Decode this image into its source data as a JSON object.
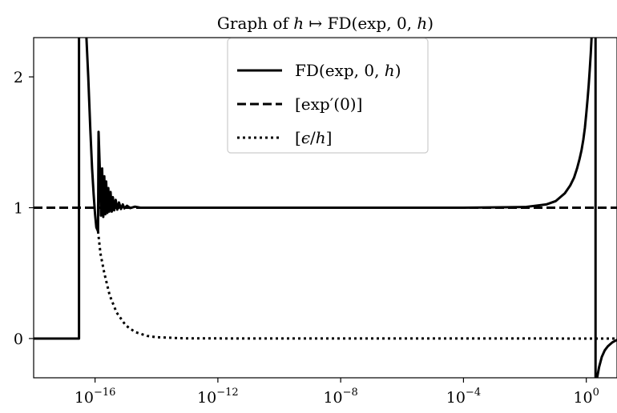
{
  "chart_data": {
    "type": "line",
    "title": "Graph of h ↦ FD(exp, 0, h)",
    "xscale": "log",
    "xlim": [
      1e-18,
      10
    ],
    "ylim": [
      -0.3,
      2.3
    ],
    "xticks": [
      {
        "value": 1e-16,
        "base": "10",
        "exp": "−16"
      },
      {
        "value": 1e-12,
        "base": "10",
        "exp": "−12"
      },
      {
        "value": 1e-08,
        "base": "10",
        "exp": "−8"
      },
      {
        "value": 0.0001,
        "base": "10",
        "exp": "−4"
      },
      {
        "value": 1,
        "base": "10",
        "exp": "0"
      }
    ],
    "yticks": [
      {
        "value": 0,
        "label": "0"
      },
      {
        "value": 1,
        "label": "1"
      },
      {
        "value": 2,
        "label": "2"
      }
    ],
    "grid": false,
    "legend_position": "upper center",
    "series": [
      {
        "name": "FD(exp, 0, h)",
        "style": "solid",
        "points": [
          [
            1e-18,
            0
          ],
          [
            3e-17,
            0
          ],
          [
            3.001e-17,
            2.4
          ],
          [
            5e-17,
            2.4
          ],
          [
            6e-17,
            2.0
          ],
          [
            7e-17,
            1.6
          ],
          [
            8e-17,
            1.3
          ],
          [
            9e-17,
            1.1
          ],
          [
            1e-16,
            0.95
          ],
          [
            1.1e-16,
            0.85
          ],
          [
            1.25e-16,
            0.82
          ],
          [
            1.3e-16,
            1.58
          ],
          [
            1.45e-16,
            1.25
          ],
          [
            1.55e-16,
            0.94
          ],
          [
            1.7e-16,
            1.3
          ],
          [
            1.85e-16,
            0.93
          ],
          [
            2e-16,
            1.24
          ],
          [
            2.15e-16,
            0.95
          ],
          [
            2.3e-16,
            1.2
          ],
          [
            2.5e-16,
            0.96
          ],
          [
            2.7e-16,
            1.15
          ],
          [
            2.9e-16,
            0.97
          ],
          [
            3.2e-16,
            1.12
          ],
          [
            3.5e-16,
            0.97
          ],
          [
            3.8e-16,
            1.08
          ],
          [
            4.2e-16,
            0.98
          ],
          [
            4.7e-16,
            1.06
          ],
          [
            5.3e-16,
            0.985
          ],
          [
            6e-16,
            1.04
          ],
          [
            7e-16,
            0.99
          ],
          [
            8e-16,
            1.025
          ],
          [
            9e-16,
            0.995
          ],
          [
            1.1e-15,
            1.015
          ],
          [
            1.4e-15,
            0.997
          ],
          [
            2e-15,
            1.008
          ],
          [
            3e-15,
            1.0
          ],
          [
            1e-14,
            1.0
          ],
          [
            1e-08,
            1.0
          ],
          [
            0.0001,
            1.0
          ],
          [
            0.01,
            1.005
          ],
          [
            0.05,
            1.025
          ],
          [
            0.1,
            1.05
          ],
          [
            0.2,
            1.11
          ],
          [
            0.3,
            1.17
          ],
          [
            0.4,
            1.23
          ],
          [
            0.5,
            1.3
          ],
          [
            0.6,
            1.37
          ],
          [
            0.7,
            1.44
          ],
          [
            0.8,
            1.52
          ],
          [
            0.9,
            1.61
          ],
          [
            1.0,
            1.72
          ],
          [
            1.1,
            1.83
          ],
          [
            1.2,
            1.94
          ],
          [
            1.3,
            2.06
          ],
          [
            1.4,
            2.18
          ],
          [
            1.5,
            2.32
          ],
          [
            1.6,
            2.45
          ],
          [
            2.0,
            2.45
          ],
          [
            2.0001,
            -0.35
          ],
          [
            2.1,
            -0.35
          ],
          [
            2.25,
            -0.3
          ],
          [
            2.6,
            -0.22
          ],
          [
            3.2,
            -0.14
          ],
          [
            4.0,
            -0.09
          ],
          [
            5.0,
            -0.06
          ],
          [
            7.0,
            -0.03
          ],
          [
            10.0,
            -0.01
          ]
        ]
      },
      {
        "name": "[exp′(0)]",
        "style": "dashed",
        "points": [
          [
            1e-18,
            1.0
          ],
          [
            10,
            1.0
          ]
        ]
      },
      {
        "name": "[ϵ/h]",
        "style": "dotted",
        "points": [
          [
            1.25e-16,
            0.82
          ],
          [
            1.5e-16,
            0.65
          ],
          [
            2e-16,
            0.5
          ],
          [
            3e-16,
            0.33
          ],
          [
            5e-16,
            0.2
          ],
          [
            1e-15,
            0.1
          ],
          [
            2e-15,
            0.05
          ],
          [
            5e-15,
            0.02
          ],
          [
            1e-14,
            0.01
          ],
          [
            1e-13,
            0.001
          ],
          [
            10,
            0
          ]
        ]
      }
    ],
    "legend": [
      {
        "fn": "FD",
        "args": "(exp, 0, ",
        "var": "h",
        "close": ")"
      },
      {
        "pre": "[exp",
        "prime": "′",
        "post": "(0)]"
      },
      {
        "pre": "[",
        "eps": "ϵ",
        "slash": "/",
        "var": "h",
        "post": "]"
      }
    ],
    "title_parts": {
      "prefix": "Graph of ",
      "var": "h",
      "arrow": " ↦ ",
      "fn": "FD",
      "args": "(exp, 0, ",
      "var2": "h",
      "close": ")"
    }
  }
}
